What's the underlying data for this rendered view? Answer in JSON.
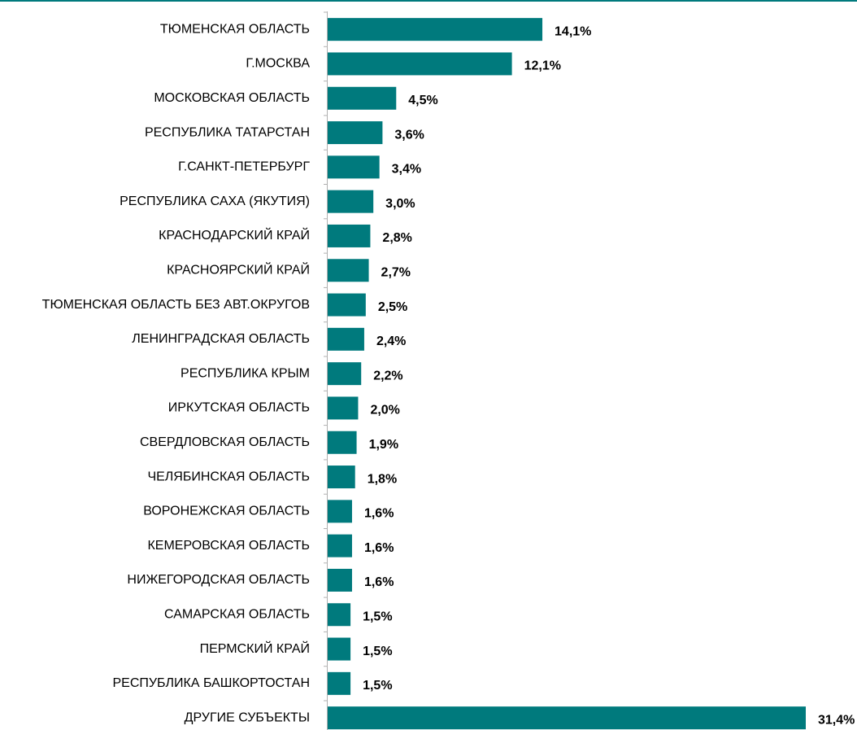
{
  "chart_data": {
    "type": "hbar",
    "color": "#007a7d",
    "categories": [
      "ТЮМЕНСКАЯ ОБЛАСТЬ",
      "Г.МОСКВА",
      "МОСКОВСКАЯ ОБЛАСТЬ",
      "РЕСПУБЛИКА ТАТАРСТАН",
      "Г.САНКТ-ПЕТЕРБУРГ",
      "РЕСПУБЛИКА САХА (ЯКУТИЯ)",
      "КРАСНОДАРСКИЙ КРАЙ",
      "КРАСНОЯРСКИЙ КРАЙ",
      "ТЮМЕНСКАЯ ОБЛАСТЬ БЕЗ АВТ.ОКРУГОВ",
      "ЛЕНИНГРАДСКАЯ ОБЛАСТЬ",
      "РЕСПУБЛИКА КРЫМ",
      "ИРКУТСКАЯ ОБЛАСТЬ",
      "СВЕРДЛОВСКАЯ ОБЛАСТЬ",
      "ЧЕЛЯБИНСКАЯ ОБЛАСТЬ",
      "ВОРОНЕЖСКАЯ ОБЛАСТЬ",
      "КЕМЕРОВСКАЯ ОБЛАСТЬ",
      "НИЖЕГОРОДСКАЯ ОБЛАСТЬ",
      "САМАРСКАЯ ОБЛАСТЬ",
      "ПЕРМСКИЙ КРАЙ",
      "РЕСПУБЛИКА БАШКОРТОСТАН",
      "ДРУГИЕ СУБЪЕКТЫ"
    ],
    "values": [
      14.1,
      12.1,
      4.5,
      3.6,
      3.4,
      3.0,
      2.8,
      2.7,
      2.5,
      2.4,
      2.2,
      2.0,
      1.9,
      1.8,
      1.6,
      1.6,
      1.6,
      1.5,
      1.5,
      1.5,
      31.4
    ],
    "value_labels": [
      "14,1%",
      "12,1%",
      "4,5%",
      "3,6%",
      "3,4%",
      "3,0%",
      "2,8%",
      "2,7%",
      "2,5%",
      "2,4%",
      "2,2%",
      "2,0%",
      "1,9%",
      "1,8%",
      "1,6%",
      "1,6%",
      "1,6%",
      "1,5%",
      "1,5%",
      "1,5%",
      "31,4%"
    ]
  }
}
